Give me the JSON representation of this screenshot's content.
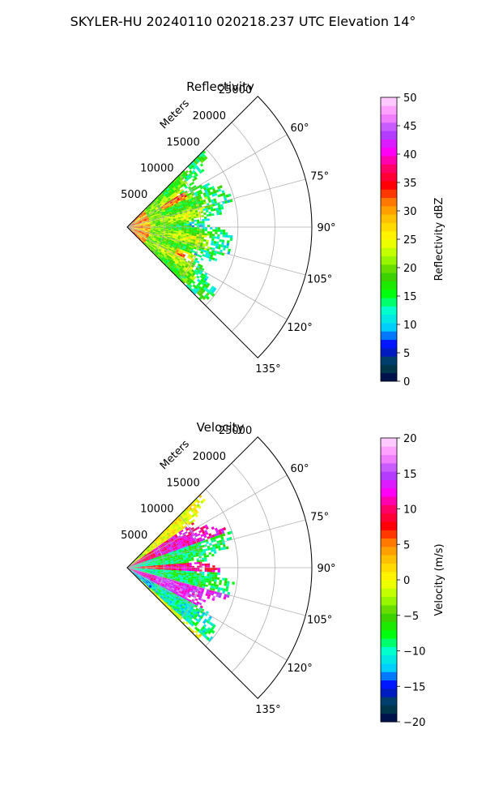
{
  "suptitle": "SKYLER-HU  20240110  020218.237 UTC Elevation 14°",
  "chart_data": [
    {
      "type": "heatmap",
      "subtype": "polar-sector (PPI radar scan)",
      "title": "Reflectivity",
      "radial_axis": {
        "label": "Meters",
        "ticks": [
          "5000",
          "10000",
          "15000",
          "20000",
          "25000"
        ],
        "tick_values": [
          5000,
          10000,
          15000,
          20000,
          25000
        ],
        "range": [
          0,
          25000
        ]
      },
      "angular_axis": {
        "ticks": [
          "60°",
          "75°",
          "90°",
          "105°",
          "120°",
          "135°"
        ],
        "tick_values": [
          60,
          75,
          90,
          105,
          120,
          135
        ],
        "range_deg": [
          45,
          135
        ]
      },
      "grid": true,
      "colorbar": {
        "label": "Reflectivity dBZ",
        "range": [
          0,
          50
        ],
        "ticks": [
          "0",
          "5",
          "10",
          "15",
          "20",
          "25",
          "30",
          "35",
          "40",
          "45",
          "50"
        ],
        "tick_values": [
          0,
          5,
          10,
          15,
          20,
          25,
          30,
          35,
          40,
          45,
          50
        ]
      },
      "data_extent": {
        "azimuth_deg": [
          45,
          135
        ],
        "max_range_m": 15000
      },
      "dominant_values_dbz": [
        18,
        24
      ],
      "peak_values_dbz": [
        34,
        36
      ]
    },
    {
      "type": "heatmap",
      "subtype": "polar-sector (PPI radar scan)",
      "title": "Velocity",
      "radial_axis": {
        "label": "Meters",
        "ticks": [
          "5000",
          "10000",
          "15000",
          "20000",
          "25000"
        ],
        "tick_values": [
          5000,
          10000,
          15000,
          20000,
          25000
        ],
        "range": [
          0,
          25000
        ]
      },
      "angular_axis": {
        "ticks": [
          "60°",
          "75°",
          "90°",
          "105°",
          "120°",
          "135°"
        ],
        "tick_values": [
          60,
          75,
          90,
          105,
          120,
          135
        ],
        "range_deg": [
          45,
          135
        ]
      },
      "grid": true,
      "colorbar": {
        "label": "Velocity (m/s)",
        "range": [
          -20,
          20
        ],
        "ticks": [
          "−20",
          "−15",
          "−10",
          "−5",
          "0",
          "5",
          "10",
          "15",
          "20"
        ],
        "tick_values": [
          -20,
          -15,
          -10,
          -5,
          0,
          5,
          10,
          15,
          20
        ]
      },
      "data_extent": {
        "azimuth_deg": [
          45,
          135
        ],
        "max_range_m": 15000
      },
      "value_bands_ms": [
        {
          "azimuth_deg": [
            55,
            70
          ],
          "velocity_ms": 12
        },
        {
          "azimuth_deg": [
            70,
            85
          ],
          "velocity_ms": -8
        },
        {
          "azimuth_deg": [
            85,
            92
          ],
          "velocity_ms": 10
        },
        {
          "azimuth_deg": [
            92,
            105
          ],
          "velocity_ms": -8
        },
        {
          "azimuth_deg": [
            105,
            118
          ],
          "velocity_ms": 14
        },
        {
          "azimuth_deg": [
            118,
            132
          ],
          "velocity_ms": -10
        }
      ]
    }
  ],
  "colors": {
    "reflectivity_stops": [
      "#00004c",
      "#004c4c",
      "#0000ff",
      "#00ccff",
      "#00ffcc",
      "#00ff00",
      "#44cc00",
      "#aaff00",
      "#ffff00",
      "#ffcc00",
      "#ff8800",
      "#ff0000",
      "#ff0066",
      "#ff00ff",
      "#aa44ff",
      "#ff88ff",
      "#ffddff"
    ],
    "velocity_stops": [
      "#00004c",
      "#004c4c",
      "#0000ff",
      "#00ccff",
      "#00ffcc",
      "#00ff00",
      "#44cc00",
      "#aaff00",
      "#ffff00",
      "#ffcc00",
      "#ff8800",
      "#ff0000",
      "#ff0066",
      "#ff00ff",
      "#aa44ff",
      "#ff88ff",
      "#ffddff"
    ],
    "grid": "#b0b0b0"
  }
}
